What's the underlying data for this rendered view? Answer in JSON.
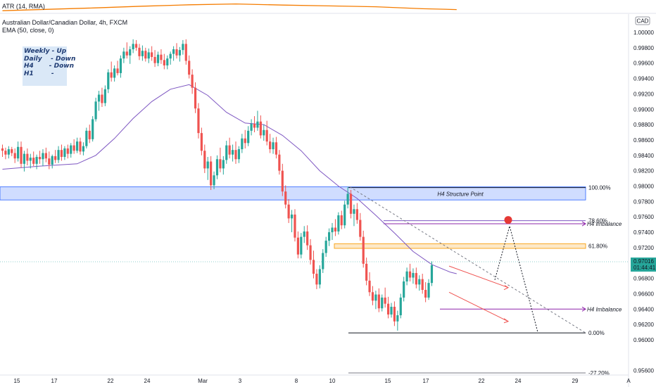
{
  "indicators": {
    "atr_label": "ATR (14, RMA)",
    "ema_label": "EMA (50, close, 0)"
  },
  "symbol": {
    "title": "Australian Dollar/Canadian Dollar, 4h, FXCM",
    "currency_badge": "CAD"
  },
  "notes": {
    "lines": [
      "Weekly - Up",
      "Daily    - Down",
      "H4       - Down",
      "H1        -"
    ]
  },
  "price_badge": {
    "price": "0.97016",
    "countdown": "01:44:41"
  },
  "annotations": {
    "structure": "H4 Structure Point",
    "imbalance_upper": "H4 Imbalance",
    "imbalance_lower": "H4 Imbalance"
  },
  "colors": {
    "bull": "#26a69a",
    "bear": "#ef5350",
    "ema": "#7e57c2",
    "atr": "#f57c00",
    "zone": "#2962ff",
    "fib_gold": "#f9a825",
    "target_dot": "#e53935"
  },
  "chart_data": {
    "type": "candlestick",
    "symbol": "AUDCAD",
    "timeframe": "4h",
    "y_axis": {
      "min": 0.955,
      "max": 1.001,
      "ticks": [
        "1.00000",
        "0.99800",
        "0.99600",
        "0.99400",
        "0.99200",
        "0.99000",
        "0.98800",
        "0.98600",
        "0.98400",
        "0.98200",
        "0.98000",
        "0.97800",
        "0.97600",
        "0.97400",
        "0.97200",
        "0.96800",
        "0.96600",
        "0.96400",
        "0.96200",
        "0.96000",
        "0.95600"
      ]
    },
    "x_axis": {
      "labels": [
        "15",
        "17",
        "22",
        "24",
        "Mar",
        "3",
        "8",
        "10",
        "15",
        "17",
        "22",
        "24",
        "29",
        "A"
      ]
    },
    "fib_levels": [
      {
        "label": "100.00%",
        "price": 0.9798
      },
      {
        "label": "78.60%",
        "price": 0.9755
      },
      {
        "label": "61.80%",
        "price": 0.9722
      },
      {
        "label": "0.00%",
        "price": 0.9609
      },
      {
        "label": "-27.20%",
        "price": 0.9557
      }
    ],
    "current_price": 0.97016,
    "ohlc": [
      [
        0.9849,
        0.9854,
        0.9838,
        0.9846
      ],
      [
        0.9846,
        0.985,
        0.9835,
        0.9841
      ],
      [
        0.9841,
        0.9852,
        0.9836,
        0.9848
      ],
      [
        0.9848,
        0.9851,
        0.9839,
        0.9843
      ],
      [
        0.9843,
        0.9849,
        0.983,
        0.9836
      ],
      [
        0.9836,
        0.9858,
        0.9832,
        0.9851
      ],
      [
        0.9851,
        0.9858,
        0.9824,
        0.9829
      ],
      [
        0.9829,
        0.9846,
        0.9819,
        0.9842
      ],
      [
        0.9842,
        0.9849,
        0.9827,
        0.9833
      ],
      [
        0.9833,
        0.9842,
        0.9823,
        0.9837
      ],
      [
        0.9837,
        0.9845,
        0.9826,
        0.9829
      ],
      [
        0.9829,
        0.9841,
        0.9822,
        0.9838
      ],
      [
        0.9838,
        0.9846,
        0.9829,
        0.9835
      ],
      [
        0.9835,
        0.9848,
        0.9826,
        0.9843
      ],
      [
        0.9843,
        0.985,
        0.9831,
        0.9836
      ],
      [
        0.9836,
        0.9845,
        0.9822,
        0.9828
      ],
      [
        0.9828,
        0.9841,
        0.9823,
        0.9839
      ],
      [
        0.9839,
        0.9847,
        0.983,
        0.9834
      ],
      [
        0.9834,
        0.9852,
        0.983,
        0.9847
      ],
      [
        0.9847,
        0.9854,
        0.9833,
        0.9838
      ],
      [
        0.9838,
        0.9852,
        0.9834,
        0.9849
      ],
      [
        0.9849,
        0.9854,
        0.9836,
        0.9842
      ],
      [
        0.9842,
        0.9856,
        0.9837,
        0.9853
      ],
      [
        0.9853,
        0.9861,
        0.9842,
        0.9846
      ],
      [
        0.9846,
        0.9863,
        0.9843,
        0.9858
      ],
      [
        0.9858,
        0.9863,
        0.9841,
        0.9845
      ],
      [
        0.9845,
        0.9857,
        0.984,
        0.9852
      ],
      [
        0.9852,
        0.9876,
        0.9849,
        0.9872
      ],
      [
        0.9872,
        0.988,
        0.9856,
        0.9861
      ],
      [
        0.9861,
        0.9891,
        0.9858,
        0.9887
      ],
      [
        0.9887,
        0.9915,
        0.9884,
        0.991
      ],
      [
        0.991,
        0.9924,
        0.9898,
        0.9919
      ],
      [
        0.9919,
        0.9928,
        0.9903,
        0.9908
      ],
      [
        0.9908,
        0.9931,
        0.9904,
        0.9926
      ],
      [
        0.9926,
        0.9952,
        0.9921,
        0.9948
      ],
      [
        0.9948,
        0.9962,
        0.9936,
        0.9941
      ],
      [
        0.9941,
        0.9957,
        0.9936,
        0.9953
      ],
      [
        0.9953,
        0.9963,
        0.9944,
        0.9947
      ],
      [
        0.9947,
        0.997,
        0.9941,
        0.9966
      ],
      [
        0.9966,
        0.998,
        0.996,
        0.9975
      ],
      [
        0.9975,
        0.9987,
        0.9966,
        0.997
      ],
      [
        0.997,
        0.9982,
        0.9959,
        0.9978
      ],
      [
        0.9978,
        0.9991,
        0.9973,
        0.9985
      ],
      [
        0.9985,
        0.999,
        0.9976,
        0.998
      ],
      [
        0.998,
        0.9985,
        0.9964,
        0.9969
      ],
      [
        0.9969,
        0.9983,
        0.9963,
        0.9976
      ],
      [
        0.9976,
        0.998,
        0.9962,
        0.9966
      ],
      [
        0.9966,
        0.9979,
        0.996,
        0.9974
      ],
      [
        0.9974,
        0.9982,
        0.9963,
        0.9968
      ],
      [
        0.9968,
        0.9977,
        0.9955,
        0.996
      ],
      [
        0.996,
        0.9975,
        0.9956,
        0.9971
      ],
      [
        0.9971,
        0.9978,
        0.9959,
        0.9964
      ],
      [
        0.9964,
        0.9972,
        0.9952,
        0.9957
      ],
      [
        0.9957,
        0.997,
        0.9952,
        0.9966
      ],
      [
        0.9966,
        0.9975,
        0.9958,
        0.9972
      ],
      [
        0.9972,
        0.9982,
        0.9963,
        0.9978
      ],
      [
        0.9978,
        0.9986,
        0.9966,
        0.997
      ],
      [
        0.997,
        0.9981,
        0.9962,
        0.9977
      ],
      [
        0.9977,
        0.999,
        0.9971,
        0.9985
      ],
      [
        0.9985,
        0.9991,
        0.9958,
        0.9963
      ],
      [
        0.9963,
        0.997,
        0.994,
        0.9945
      ],
      [
        0.9945,
        0.9952,
        0.992,
        0.9928
      ],
      [
        0.9928,
        0.9935,
        0.9895,
        0.9901
      ],
      [
        0.9901,
        0.9908,
        0.9862,
        0.9869
      ],
      [
        0.9869,
        0.9876,
        0.984,
        0.9846
      ],
      [
        0.9846,
        0.9854,
        0.9817,
        0.9823
      ],
      [
        0.9823,
        0.9838,
        0.9808,
        0.9832
      ],
      [
        0.9832,
        0.9839,
        0.9795,
        0.9801
      ],
      [
        0.9801,
        0.9819,
        0.9796,
        0.9814
      ],
      [
        0.9814,
        0.984,
        0.9809,
        0.9835
      ],
      [
        0.9835,
        0.985,
        0.9818,
        0.9823
      ],
      [
        0.9823,
        0.9839,
        0.9815,
        0.9834
      ],
      [
        0.9834,
        0.9859,
        0.9829,
        0.9853
      ],
      [
        0.9853,
        0.9863,
        0.9836,
        0.9841
      ],
      [
        0.9841,
        0.9854,
        0.9832,
        0.9847
      ],
      [
        0.9847,
        0.9858,
        0.9829,
        0.9835
      ],
      [
        0.9835,
        0.9852,
        0.983,
        0.9848
      ],
      [
        0.9848,
        0.9868,
        0.9843,
        0.9862
      ],
      [
        0.9862,
        0.9873,
        0.9849,
        0.9856
      ],
      [
        0.9856,
        0.9878,
        0.9852,
        0.9872
      ],
      [
        0.9872,
        0.9887,
        0.9866,
        0.9881
      ],
      [
        0.9881,
        0.9891,
        0.987,
        0.9876
      ],
      [
        0.9876,
        0.9898,
        0.9872,
        0.9884
      ],
      [
        0.9884,
        0.9892,
        0.9862,
        0.9866
      ],
      [
        0.9866,
        0.988,
        0.9859,
        0.9873
      ],
      [
        0.9873,
        0.9885,
        0.9853,
        0.9858
      ],
      [
        0.9858,
        0.9868,
        0.9843,
        0.9848
      ],
      [
        0.9848,
        0.9863,
        0.9842,
        0.9857
      ],
      [
        0.9857,
        0.9864,
        0.9836,
        0.9841
      ],
      [
        0.9841,
        0.9847,
        0.9815,
        0.982
      ],
      [
        0.982,
        0.9829,
        0.9787,
        0.9793
      ],
      [
        0.9793,
        0.9801,
        0.9771,
        0.9776
      ],
      [
        0.9776,
        0.9783,
        0.9752,
        0.9758
      ],
      [
        0.9758,
        0.9769,
        0.974,
        0.9763
      ],
      [
        0.9763,
        0.977,
        0.9728,
        0.9733
      ],
      [
        0.9733,
        0.9741,
        0.9706,
        0.9711
      ],
      [
        0.9711,
        0.9739,
        0.9706,
        0.9734
      ],
      [
        0.9734,
        0.9748,
        0.9726,
        0.9741
      ],
      [
        0.9741,
        0.9749,
        0.9717,
        0.9723
      ],
      [
        0.9723,
        0.9731,
        0.9698,
        0.9704
      ],
      [
        0.9704,
        0.9716,
        0.968,
        0.9686
      ],
      [
        0.9686,
        0.9692,
        0.9666,
        0.9672
      ],
      [
        0.9672,
        0.9697,
        0.9667,
        0.9692
      ],
      [
        0.9692,
        0.9718,
        0.9687,
        0.9713
      ],
      [
        0.9713,
        0.9734,
        0.9708,
        0.9729
      ],
      [
        0.9729,
        0.9745,
        0.9722,
        0.974
      ],
      [
        0.974,
        0.9752,
        0.973,
        0.9746
      ],
      [
        0.9746,
        0.9757,
        0.9735,
        0.9741
      ],
      [
        0.9741,
        0.9766,
        0.9737,
        0.9762
      ],
      [
        0.9762,
        0.9768,
        0.9744,
        0.9749
      ],
      [
        0.9749,
        0.9781,
        0.9745,
        0.9776
      ],
      [
        0.9776,
        0.9799,
        0.9771,
        0.979
      ],
      [
        0.979,
        0.9795,
        0.9758,
        0.9764
      ],
      [
        0.9764,
        0.9776,
        0.9748,
        0.977
      ],
      [
        0.977,
        0.9778,
        0.9751,
        0.9756
      ],
      [
        0.9756,
        0.9765,
        0.9729,
        0.9734
      ],
      [
        0.9734,
        0.9742,
        0.9694,
        0.9699
      ],
      [
        0.9699,
        0.9707,
        0.9671,
        0.9677
      ],
      [
        0.9677,
        0.9688,
        0.9657,
        0.9662
      ],
      [
        0.9662,
        0.967,
        0.9645,
        0.9651
      ],
      [
        0.9651,
        0.9664,
        0.964,
        0.9659
      ],
      [
        0.9659,
        0.9667,
        0.9636,
        0.9641
      ],
      [
        0.9641,
        0.9659,
        0.9637,
        0.9655
      ],
      [
        0.9655,
        0.9668,
        0.9642,
        0.9647
      ],
      [
        0.9647,
        0.9656,
        0.9628,
        0.9633
      ],
      [
        0.9633,
        0.9648,
        0.9629,
        0.9643
      ],
      [
        0.9643,
        0.965,
        0.9618,
        0.9624
      ],
      [
        0.9624,
        0.9638,
        0.9612,
        0.9632
      ],
      [
        0.9632,
        0.966,
        0.9628,
        0.9655
      ],
      [
        0.9655,
        0.9682,
        0.965,
        0.9676
      ],
      [
        0.9676,
        0.9694,
        0.9671,
        0.9689
      ],
      [
        0.9689,
        0.9699,
        0.9676,
        0.9681
      ],
      [
        0.9681,
        0.9693,
        0.9673,
        0.9687
      ],
      [
        0.9687,
        0.9694,
        0.9667,
        0.9672
      ],
      [
        0.9672,
        0.9684,
        0.9664,
        0.9679
      ],
      [
        0.9679,
        0.9686,
        0.966,
        0.9665
      ],
      [
        0.9665,
        0.9675,
        0.9649,
        0.9655
      ],
      [
        0.9655,
        0.9679,
        0.9652,
        0.9674
      ],
      [
        0.9674,
        0.9702,
        0.967,
        0.9697
      ]
    ],
    "ema50_points": [
      [
        0,
        0.9822
      ],
      [
        12,
        0.9826
      ],
      [
        24,
        0.9829
      ],
      [
        30,
        0.984
      ],
      [
        36,
        0.9862
      ],
      [
        42,
        0.9888
      ],
      [
        48,
        0.991
      ],
      [
        54,
        0.9926
      ],
      [
        60,
        0.9932
      ],
      [
        66,
        0.9918
      ],
      [
        72,
        0.9896
      ],
      [
        78,
        0.9882
      ],
      [
        84,
        0.988
      ],
      [
        90,
        0.9866
      ],
      [
        96,
        0.9846
      ],
      [
        102,
        0.982
      ],
      [
        108,
        0.98
      ],
      [
        114,
        0.9784
      ],
      [
        120,
        0.9762
      ],
      [
        126,
        0.9739
      ],
      [
        132,
        0.9715
      ],
      [
        138,
        0.9698
      ],
      [
        144,
        0.9688
      ],
      [
        146,
        0.9686
      ]
    ],
    "atr_points": [
      [
        0,
        0.42
      ],
      [
        15,
        0.47
      ],
      [
        30,
        0.52
      ],
      [
        45,
        0.58
      ],
      [
        60,
        0.63
      ],
      [
        75,
        0.66
      ],
      [
        90,
        0.62
      ],
      [
        105,
        0.59
      ],
      [
        120,
        0.56
      ],
      [
        135,
        0.49
      ],
      [
        146,
        0.46
      ]
    ]
  }
}
